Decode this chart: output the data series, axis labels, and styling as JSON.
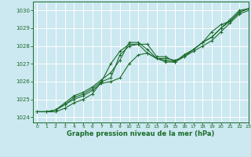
{
  "title": "Graphe pression niveau de la mer (hPa)",
  "bg_color": "#cce8f0",
  "grid_color": "#ffffff",
  "line_color": "#1a6b2a",
  "xlim": [
    -0.5,
    23
  ],
  "ylim": [
    1023.7,
    1030.5
  ],
  "yticks": [
    1024,
    1025,
    1026,
    1027,
    1028,
    1029,
    1030
  ],
  "xticks": [
    0,
    1,
    2,
    3,
    4,
    5,
    6,
    7,
    8,
    9,
    10,
    11,
    12,
    13,
    14,
    15,
    16,
    17,
    18,
    19,
    20,
    21,
    22,
    23
  ],
  "series": [
    [
      1024.3,
      1024.3,
      1024.3,
      1024.5,
      1024.8,
      1025.0,
      1025.3,
      1026.0,
      1027.0,
      1027.7,
      1028.1,
      1028.1,
      1028.1,
      1027.4,
      1027.4,
      1027.1,
      1027.5,
      1027.8,
      1028.2,
      1028.5,
      1029.0,
      1029.5,
      1030.0,
      1030.1
    ],
    [
      1024.3,
      1024.3,
      1024.4,
      1024.7,
      1025.0,
      1025.2,
      1025.5,
      1025.9,
      1026.0,
      1026.2,
      1027.0,
      1027.5,
      1027.6,
      1027.3,
      1027.3,
      1027.2,
      1027.4,
      1027.7,
      1028.0,
      1028.3,
      1028.8,
      1029.3,
      1029.8,
      1030.0
    ],
    [
      1024.3,
      1024.3,
      1024.4,
      1024.7,
      1025.1,
      1025.3,
      1025.6,
      1026.0,
      1026.2,
      1027.5,
      1028.0,
      1028.1,
      1027.6,
      1027.3,
      1027.1,
      1027.1,
      1027.4,
      1027.8,
      1028.2,
      1028.8,
      1029.2,
      1029.4,
      1029.9,
      1030.1
    ],
    [
      1024.3,
      1024.3,
      1024.4,
      1024.8,
      1025.2,
      1025.4,
      1025.7,
      1026.1,
      1026.5,
      1027.2,
      1028.2,
      1028.2,
      1027.8,
      1027.3,
      1027.2,
      1027.1,
      1027.5,
      1027.8,
      1028.2,
      1028.5,
      1029.0,
      1029.4,
      1029.9,
      1030.1
    ]
  ]
}
